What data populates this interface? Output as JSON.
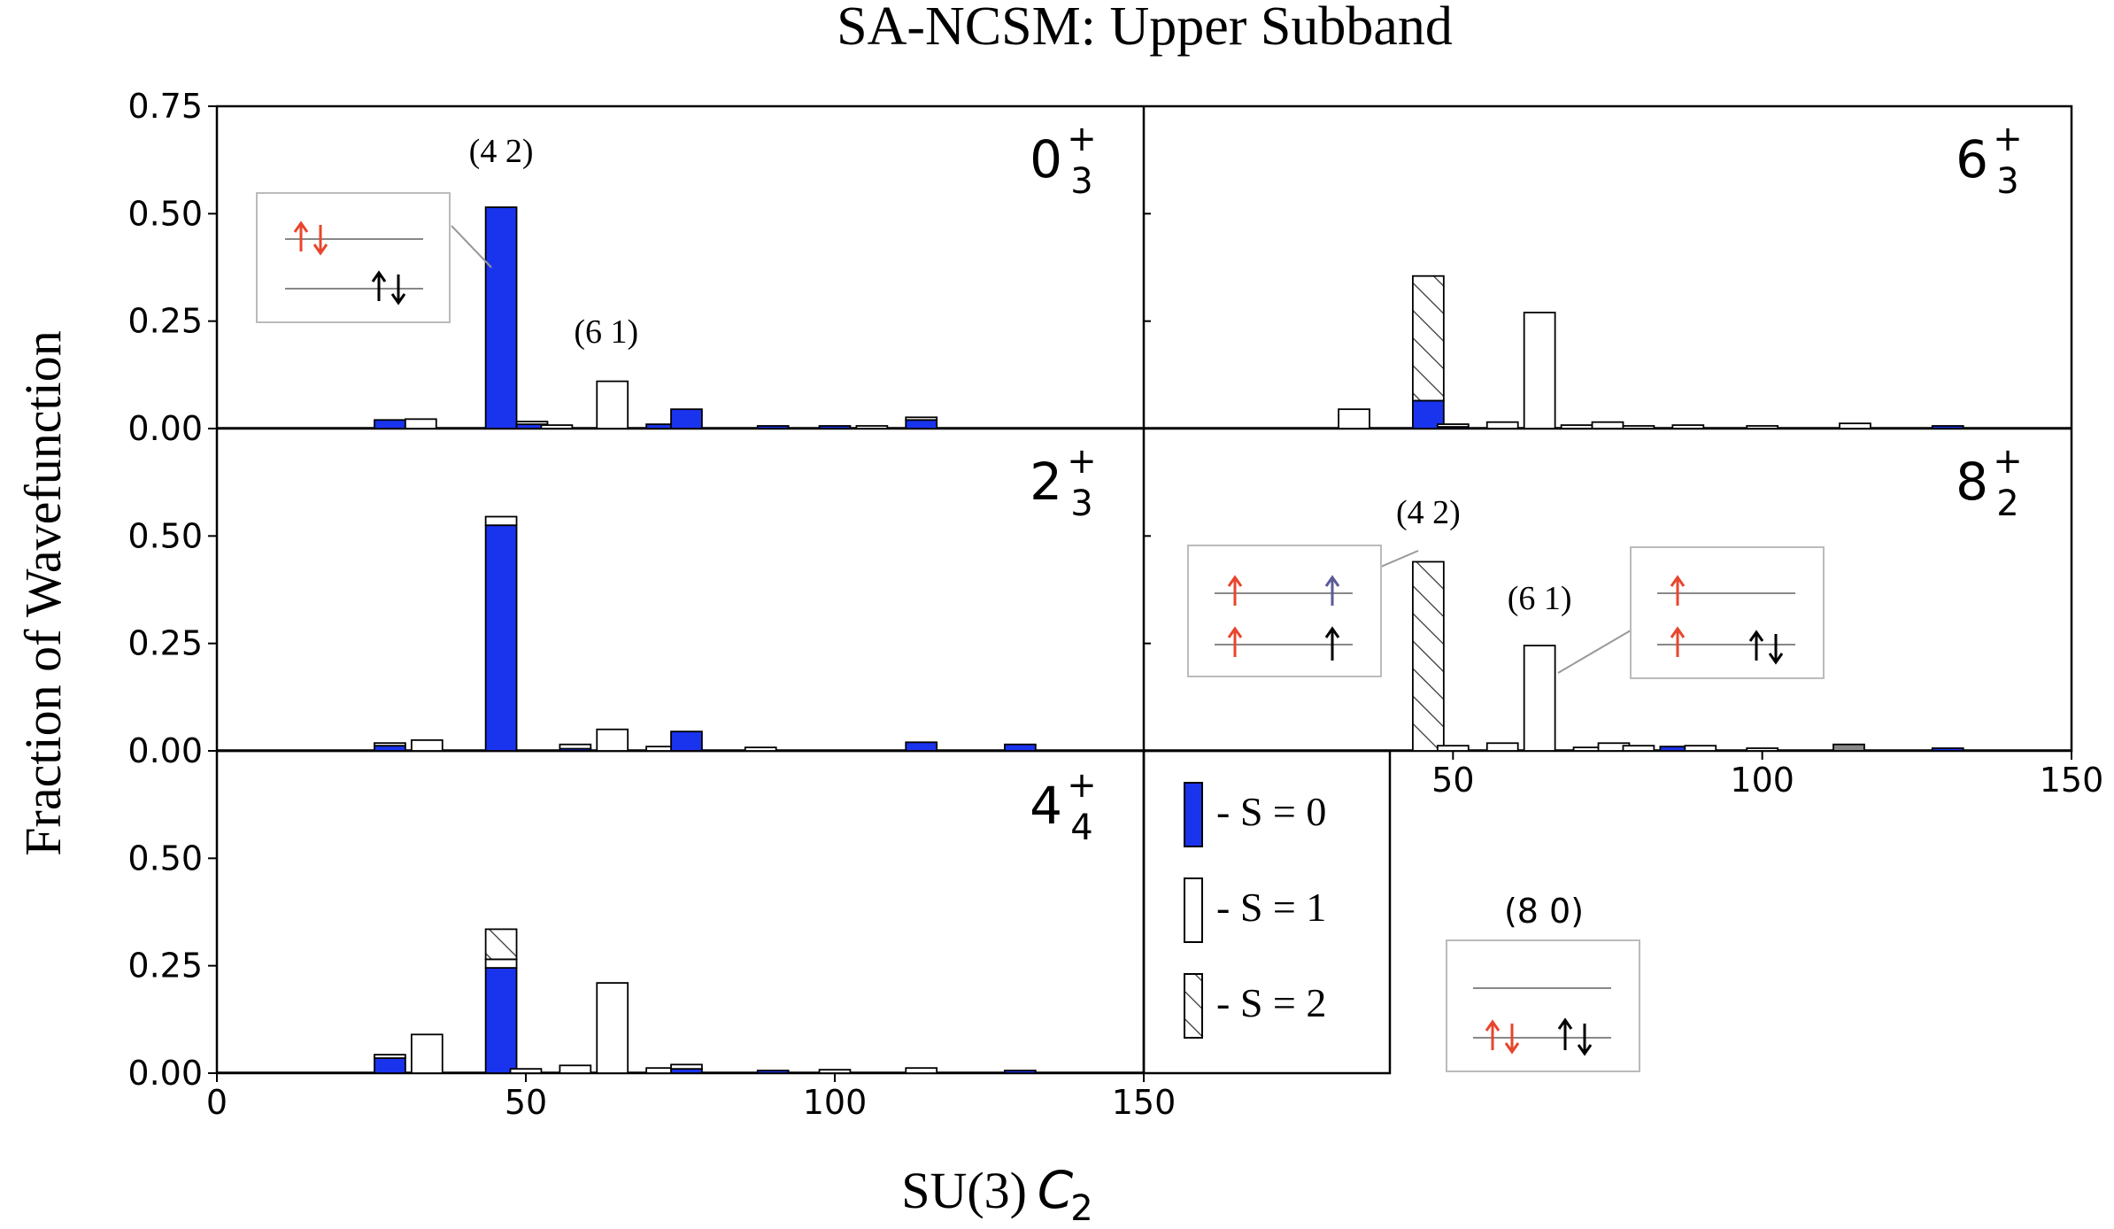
{
  "chart_data": {
    "type": "bar",
    "title": "SA-NCSM: Upper Subband",
    "ylabel": "Fraction of Wavefunction",
    "xlabel": "SU(3)",
    "xlabel_symbol": "C",
    "xlabel_sub": "2",
    "xlim": [
      0,
      150
    ],
    "x_ticks": [
      "0",
      "50",
      "100",
      "150"
    ],
    "bar_width": 5,
    "legend": [
      {
        "key": "s0",
        "label": "- S = 0",
        "fill": "#1a34ee"
      },
      {
        "key": "s1",
        "label": "- S = 1",
        "fill": "#ffffff"
      },
      {
        "key": "s2",
        "label": "- S = 2",
        "fill": "hatch"
      }
    ],
    "colors": {
      "s0": "#1a34ee",
      "s1": "#ffffff",
      "s2": "#ffffff",
      "edge": "#000000",
      "spin_red": "#e8452c",
      "spin_purple": "#5a5a9a",
      "gray_bar": "#888888"
    },
    "panels": [
      {
        "id": "p0",
        "state": "0",
        "sub": "3",
        "sup": "+",
        "ylim": [
          0,
          0.75
        ],
        "y_ticks": [
          "0.75",
          "0.50",
          "0.25",
          "0.00"
        ],
        "y_tick_values": [
          0.75,
          0.5,
          0.25,
          0.0
        ],
        "bars": [
          {
            "x": 28,
            "s0": 0.02,
            "s1": 0.0,
            "s2": 0.0
          },
          {
            "x": 33,
            "s0": 0.0,
            "s1": 0.022,
            "s2": 0.0
          },
          {
            "x": 46,
            "s0": 0.515,
            "s1": 0.0,
            "s2": 0.0
          },
          {
            "x": 51,
            "s0": 0.01,
            "s1": 0.003,
            "s2": 0.0
          },
          {
            "x": 55,
            "s0": 0.0,
            "s1": 0.008,
            "s2": 0.0
          },
          {
            "x": 64,
            "s0": 0.0,
            "s1": 0.11,
            "s2": 0.0
          },
          {
            "x": 72,
            "s0": 0.01,
            "s1": 0.0,
            "s2": 0.0
          },
          {
            "x": 76,
            "s0": 0.045,
            "s1": 0.0,
            "s2": 0.0
          },
          {
            "x": 90,
            "s0": 0.002,
            "s1": 0.0,
            "s2": 0.0
          },
          {
            "x": 100,
            "s0": 0.004,
            "s1": 0.0,
            "s2": 0.0
          },
          {
            "x": 106,
            "s0": 0.0,
            "s1": 0.005,
            "s2": 0.0
          },
          {
            "x": 114,
            "s0": 0.02,
            "s1": 0.005,
            "s2": 0.0
          }
        ],
        "annotations": [
          {
            "text": "(4 2)",
            "x": 46,
            "y": 0.62
          },
          {
            "text": "(6 1)",
            "x": 63,
            "y": 0.2
          }
        ]
      },
      {
        "id": "p1",
        "state": "6",
        "sub": "3",
        "sup": "+",
        "ylim": [
          0,
          0.75
        ],
        "y_ticks": [],
        "y_tick_values": [
          0.75,
          0.5,
          0.25,
          0.0
        ],
        "bars": [
          {
            "x": 34,
            "s0": 0.0,
            "s1": 0.045,
            "s2": 0.0
          },
          {
            "x": 46,
            "s0": 0.065,
            "s1": 0.0,
            "s2": 0.29
          },
          {
            "x": 50,
            "s0": 0.004,
            "s1": 0.004,
            "s2": 0.0
          },
          {
            "x": 58,
            "s0": 0.0,
            "s1": 0.015,
            "s2": 0.0
          },
          {
            "x": 64,
            "s0": 0.0,
            "s1": 0.27,
            "s2": 0.0
          },
          {
            "x": 70,
            "s0": 0.0,
            "s1": 0.008,
            "s2": 0.0
          },
          {
            "x": 75,
            "s0": 0.0,
            "s1": 0.015,
            "s2": 0.0
          },
          {
            "x": 80,
            "s0": 0.0,
            "s1": 0.006,
            "s2": 0.0
          },
          {
            "x": 88,
            "s0": 0.0,
            "s1": 0.008,
            "s2": 0.0
          },
          {
            "x": 100,
            "s0": 0.0,
            "s1": 0.005,
            "s2": 0.0
          },
          {
            "x": 115,
            "s0": 0.0,
            "s1": 0.012,
            "s2": 0.0
          },
          {
            "x": 130,
            "s0": 0.003,
            "s1": 0.0,
            "s2": 0.0
          }
        ],
        "annotations": []
      },
      {
        "id": "p2",
        "state": "2",
        "sub": "3",
        "sup": "+",
        "ylim": [
          0,
          0.75
        ],
        "y_ticks": [
          "0.50",
          "0.25",
          "0.00"
        ],
        "y_tick_values": [
          0.5,
          0.25,
          0.0
        ],
        "bars": [
          {
            "x": 28,
            "s0": 0.012,
            "s1": 0.003,
            "s2": 0.0
          },
          {
            "x": 34,
            "s0": 0.0,
            "s1": 0.025,
            "s2": 0.0
          },
          {
            "x": 46,
            "s0": 0.525,
            "s1": 0.02,
            "s2": 0.0
          },
          {
            "x": 58,
            "s0": 0.005,
            "s1": 0.01,
            "s2": 0.0
          },
          {
            "x": 64,
            "s0": 0.0,
            "s1": 0.05,
            "s2": 0.0
          },
          {
            "x": 72,
            "s0": 0.0,
            "s1": 0.01,
            "s2": 0.0
          },
          {
            "x": 76,
            "s0": 0.045,
            "s1": 0.0,
            "s2": 0.0
          },
          {
            "x": 88,
            "s0": 0.0,
            "s1": 0.008,
            "s2": 0.0
          },
          {
            "x": 114,
            "s0": 0.02,
            "s1": 0.0,
            "s2": 0.0
          },
          {
            "x": 130,
            "s0": 0.015,
            "s1": 0.0,
            "s2": 0.0
          }
        ],
        "annotations": []
      },
      {
        "id": "p3",
        "state": "8",
        "sub": "2",
        "sup": "+",
        "ylim": [
          0,
          0.75
        ],
        "y_ticks": [],
        "y_tick_values": [
          0.5,
          0.25,
          0.0
        ],
        "bars": [
          {
            "x": 46,
            "s0": 0.0,
            "s1": 0.0,
            "s2": 0.44
          },
          {
            "x": 50,
            "s0": 0.0,
            "s1": 0.012,
            "s2": 0.0
          },
          {
            "x": 58,
            "s0": 0.0,
            "s1": 0.018,
            "s2": 0.0
          },
          {
            "x": 64,
            "s0": 0.0,
            "s1": 0.245,
            "s2": 0.0
          },
          {
            "x": 72,
            "s0": 0.0,
            "s1": 0.008,
            "s2": 0.0
          },
          {
            "x": 76,
            "s0": 0.0,
            "s1": 0.018,
            "s2": 0.0
          },
          {
            "x": 80,
            "s0": 0.0,
            "s1": 0.012,
            "s2": 0.0
          },
          {
            "x": 86,
            "s0": 0.01,
            "s1": 0.0,
            "s2": 0.0
          },
          {
            "x": 90,
            "s0": 0.0,
            "s1": 0.012,
            "s2": 0.0
          },
          {
            "x": 100,
            "s0": 0.0,
            "s1": 0.004,
            "s2": 0.0
          },
          {
            "x": 114,
            "s0": 0.0,
            "s1": 0.015,
            "s2": 0.0,
            "gray": true
          },
          {
            "x": 130,
            "s0": 0.006,
            "s1": 0.0,
            "s2": 0.0
          }
        ],
        "annotations": [
          {
            "text": "(4 2)",
            "x": 46,
            "y": 0.53
          },
          {
            "text": "(6 1)",
            "x": 64,
            "y": 0.33
          }
        ]
      },
      {
        "id": "p4",
        "state": "4",
        "sub": "4",
        "sup": "+",
        "ylim": [
          0,
          0.75
        ],
        "y_ticks": [
          "0.50",
          "0.25",
          "0.00"
        ],
        "y_tick_values": [
          0.5,
          0.25,
          0.0
        ],
        "bars": [
          {
            "x": 28,
            "s0": 0.035,
            "s1": 0.008,
            "s2": 0.0
          },
          {
            "x": 34,
            "s0": 0.0,
            "s1": 0.09,
            "s2": 0.0
          },
          {
            "x": 46,
            "s0": 0.245,
            "s1": 0.02,
            "s2": 0.07
          },
          {
            "x": 50,
            "s0": 0.0,
            "s1": 0.01,
            "s2": 0.0
          },
          {
            "x": 58,
            "s0": 0.0,
            "s1": 0.018,
            "s2": 0.0
          },
          {
            "x": 64,
            "s0": 0.0,
            "s1": 0.21,
            "s2": 0.0
          },
          {
            "x": 72,
            "s0": 0.0,
            "s1": 0.012,
            "s2": 0.0
          },
          {
            "x": 76,
            "s0": 0.01,
            "s1": 0.01,
            "s2": 0.0
          },
          {
            "x": 90,
            "s0": 0.006,
            "s1": 0.0,
            "s2": 0.0
          },
          {
            "x": 100,
            "s0": 0.0,
            "s1": 0.008,
            "s2": 0.0
          },
          {
            "x": 114,
            "s0": 0.0,
            "s1": 0.012,
            "s2": 0.0
          },
          {
            "x": 130,
            "s0": 0.005,
            "s1": 0.0,
            "s2": 0.0
          }
        ],
        "annotations": []
      }
    ],
    "insets": [
      {
        "id": "inset-00",
        "label": "",
        "panel": "p0"
      },
      {
        "id": "inset-42",
        "label": "(4 2)",
        "panel": "p3"
      },
      {
        "id": "inset-61",
        "label": "(6 1)",
        "panel": "p3"
      },
      {
        "id": "inset-80",
        "label": "(8 0)",
        "panel": "legend"
      }
    ]
  }
}
